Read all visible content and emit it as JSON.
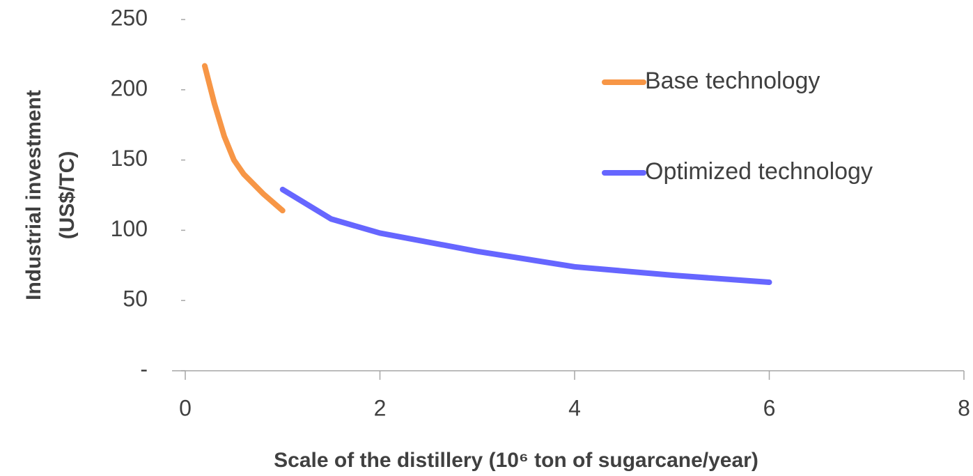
{
  "chart_data": {
    "type": "line",
    "xlabel": "Scale of the distillery (10⁶ ton of sugarcane/year)",
    "ylabel": [
      "Industrial investment",
      "(US$/TC)"
    ],
    "xlim": [
      0,
      8
    ],
    "xticks": [
      0,
      2,
      4,
      6,
      8
    ],
    "ylim": [
      0,
      250
    ],
    "yticks": [
      {
        "value": 0,
        "label": "-"
      },
      50,
      100,
      150,
      200,
      250
    ],
    "legend": "right",
    "series": [
      {
        "name": "Base technology",
        "color": "#f79646",
        "x": [
          0.2,
          0.3,
          0.4,
          0.5,
          0.6,
          0.8,
          1.0
        ],
        "values": [
          217,
          190,
          167,
          150,
          140,
          126,
          114
        ]
      },
      {
        "name": "Optimized technology",
        "color": "#6666ff",
        "x": [
          1,
          1.5,
          2,
          3,
          4,
          5,
          6
        ],
        "values": [
          129,
          108,
          98,
          85,
          74,
          68,
          63
        ]
      }
    ]
  }
}
